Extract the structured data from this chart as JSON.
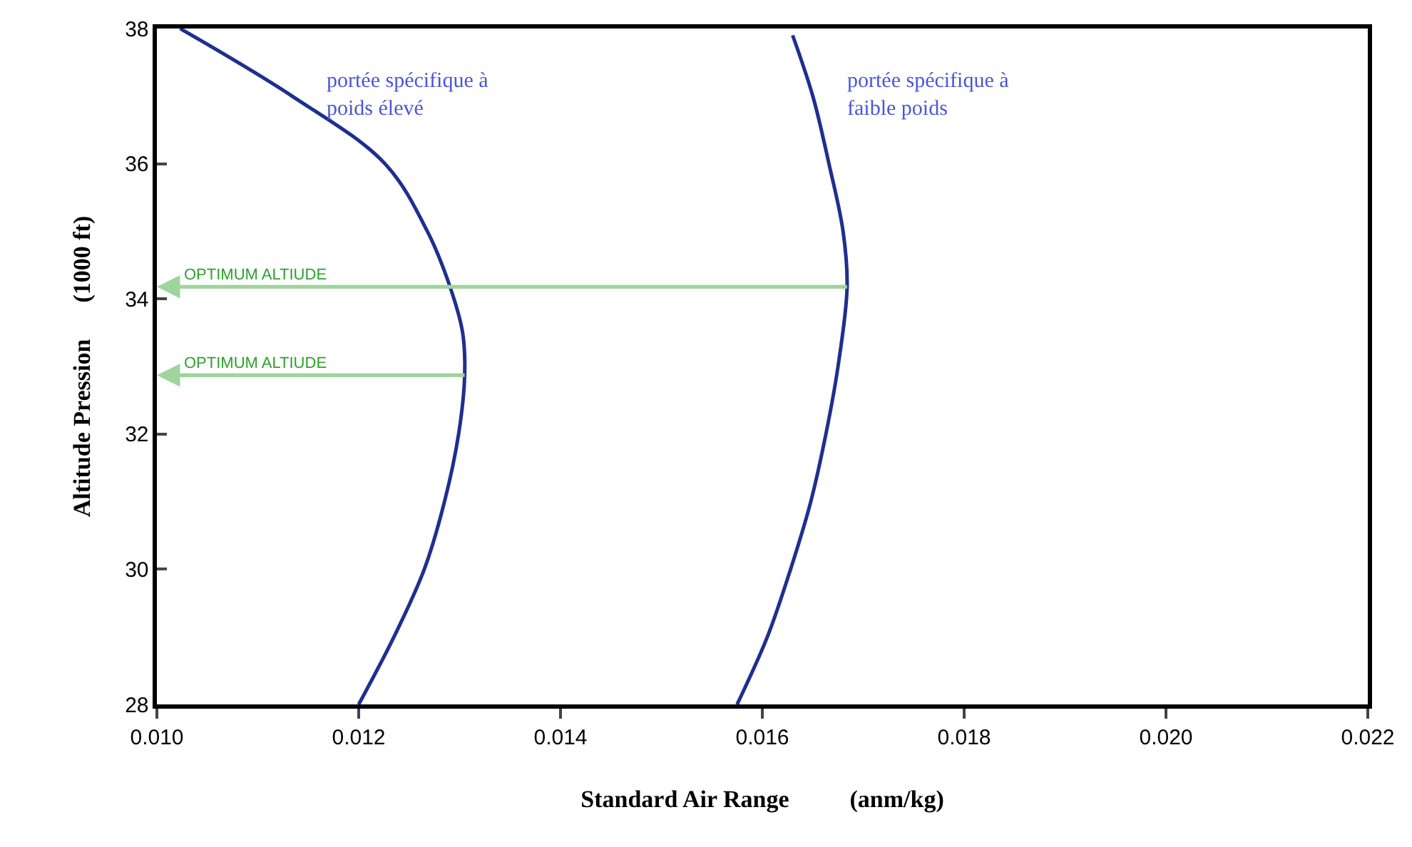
{
  "chart_data": {
    "type": "line",
    "xlabel": "Standard Air Range          (anm/kg)",
    "ylabel": "Altitude Pression      (1000 ft)",
    "xlim": [
      0.01,
      0.022
    ],
    "xticks": [
      {
        "value": 0.01,
        "label": "0.010"
      },
      {
        "value": 0.012,
        "label": "0.012"
      },
      {
        "value": 0.014,
        "label": "0.014"
      },
      {
        "value": 0.016,
        "label": "0.016"
      },
      {
        "value": 0.018,
        "label": "0.018"
      },
      {
        "value": 0.02,
        "label": "0.020"
      },
      {
        "value": 0.022,
        "label": "0.022"
      }
    ],
    "ylim": [
      28,
      38
    ],
    "yticks": [
      28,
      30,
      32,
      34,
      36,
      38
    ],
    "grid": false,
    "legend": false,
    "marker": "none",
    "line_style": "solid",
    "series": [
      {
        "name": "portée spécifique à poids élevé",
        "color": "#1f2f8f",
        "x": [
          0.012,
          0.01235,
          0.01265,
          0.01285,
          0.01299,
          0.01305,
          0.01303,
          0.0129,
          0.01268,
          0.01226,
          0.01134,
          0.01023
        ],
        "values": [
          28,
          29,
          30,
          31,
          32,
          32.87,
          33.5,
          34.2,
          35,
          36,
          37,
          38
        ]
      },
      {
        "name": "portée spécifique à faible poids",
        "color": "#1f2f8f",
        "x": [
          0.01575,
          0.01605,
          0.01628,
          0.01648,
          0.01663,
          0.01675,
          0.01684,
          0.0168,
          0.01666,
          0.0165,
          0.0163
        ],
        "values": [
          28,
          29,
          30,
          31,
          32,
          33,
          34.18,
          35,
          36,
          37,
          37.9
        ]
      }
    ],
    "annotations": [
      {
        "text": "OPTIMUM ALTIUDE",
        "x": 0.01684,
        "y": 34.18
      },
      {
        "text": "OPTIMUM ALTIUDE",
        "x": 0.01305,
        "y": 32.87
      }
    ]
  }
}
